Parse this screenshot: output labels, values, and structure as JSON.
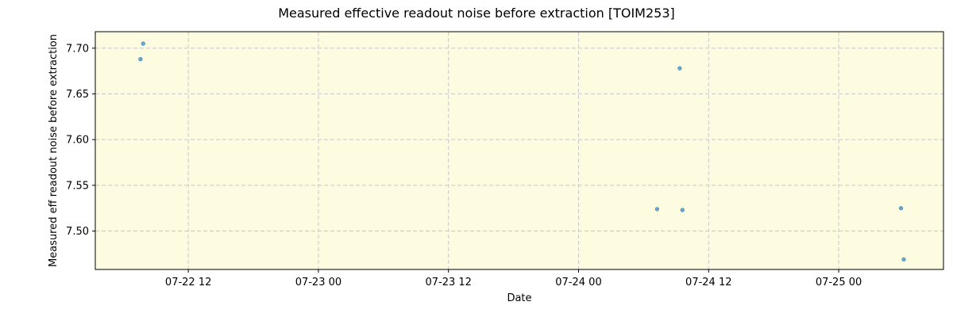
{
  "chart_data": {
    "type": "scatter",
    "title": "Measured effective readout noise before extraction [TOIM253]",
    "xlabel": "Date",
    "ylabel": "Measured eff readout noise before extraction",
    "x_tick_labels": [
      "07-22 12",
      "07-23 00",
      "07-23 12",
      "07-24 00",
      "07-24 12",
      "07-25 00"
    ],
    "x_ticks": [
      "2024-07-22T12:00",
      "2024-07-23T00:00",
      "2024-07-23T12:00",
      "2024-07-24T00:00",
      "2024-07-24T12:00",
      "2024-07-25T00:00"
    ],
    "y_ticks": [
      7.5,
      7.55,
      7.6,
      7.65,
      7.7
    ],
    "y_tick_labels": [
      "7.50",
      "7.55",
      "7.60",
      "7.65",
      "7.70"
    ],
    "xlim": [
      "2024-07-22T03:25",
      "2024-07-25T09:40"
    ],
    "ylim": [
      7.458,
      7.718
    ],
    "grid": true,
    "background": "#fdfbe0",
    "point_color": "#6aa7cf",
    "points": [
      {
        "x": "2024-07-22T07:50",
        "y": 7.705
      },
      {
        "x": "2024-07-22T07:35",
        "y": 7.688
      },
      {
        "x": "2024-07-24T09:20",
        "y": 7.678
      },
      {
        "x": "2024-07-24T07:15",
        "y": 7.524
      },
      {
        "x": "2024-07-24T09:35",
        "y": 7.523
      },
      {
        "x": "2024-07-25T05:45",
        "y": 7.525
      },
      {
        "x": "2024-07-25T06:00",
        "y": 7.469
      }
    ]
  }
}
